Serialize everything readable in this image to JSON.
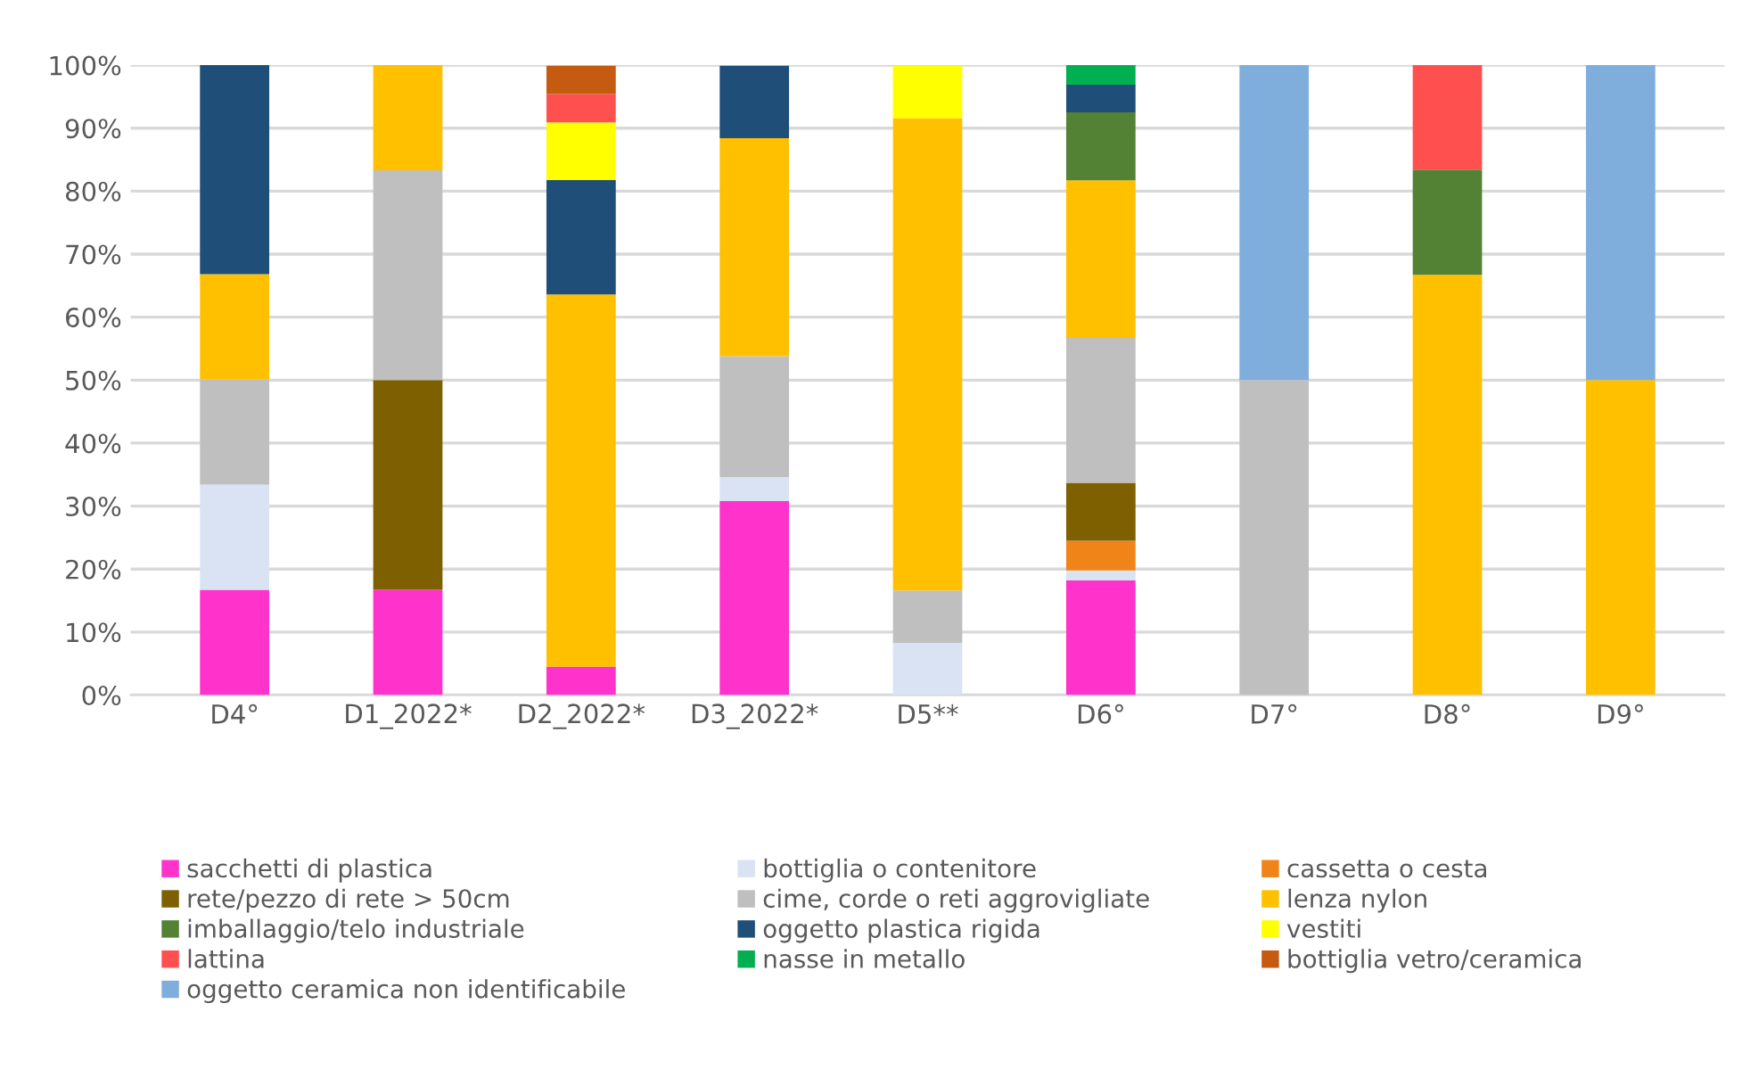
{
  "chart_data": {
    "type": "bar",
    "stacked": true,
    "categories": [
      "D4°",
      "D1_2022*",
      "D2_2022*",
      "D3_2022*",
      "D5**",
      "D6°",
      "D7°",
      "D8°",
      "D9°"
    ],
    "ylim": [
      0,
      100
    ],
    "yticks": [
      {
        "value": 0,
        "label": "0%"
      },
      {
        "value": 10,
        "label": "10%"
      },
      {
        "value": 20,
        "label": "20%"
      },
      {
        "value": 30,
        "label": "30%"
      },
      {
        "value": 40,
        "label": "40%"
      },
      {
        "value": 50,
        "label": "50%"
      },
      {
        "value": 60,
        "label": "60%"
      },
      {
        "value": 70,
        "label": "70%"
      },
      {
        "value": 80,
        "label": "80%"
      },
      {
        "value": 90,
        "label": "90%"
      },
      {
        "value": 100,
        "label": "100%"
      }
    ],
    "grid": "y",
    "legend": "bottom",
    "series": [
      {
        "name": "sacchetti di plastica",
        "color": "#ff33cc",
        "values": [
          16.7,
          16.7,
          4.5,
          30.8,
          0,
          18.2,
          0,
          0,
          0
        ]
      },
      {
        "name": "bottiglia o contenitore",
        "color": "#dae3f3",
        "values": [
          16.7,
          0,
          0,
          3.8,
          8.3,
          1.6,
          0,
          0,
          0
        ]
      },
      {
        "name": "cassetta o cesta",
        "color": "#f08419",
        "values": [
          0,
          0,
          0,
          0,
          0,
          4.7,
          0,
          0,
          0
        ]
      },
      {
        "name": "rete/pezzo di rete > 50cm",
        "color": "#7f6000",
        "values": [
          0,
          33.3,
          0,
          0,
          0,
          9.2,
          0,
          0,
          0
        ]
      },
      {
        "name": "cime, corde o reti aggrovigliate",
        "color": "#bfbfbf",
        "values": [
          16.7,
          33.3,
          0,
          19.2,
          8.3,
          23.0,
          50,
          0,
          0
        ]
      },
      {
        "name": "lenza nylon",
        "color": "#ffc000",
        "values": [
          16.7,
          16.7,
          59.1,
          34.6,
          75,
          25.0,
          0,
          66.7,
          50
        ]
      },
      {
        "name": "imballaggio/telo industriale",
        "color": "#548235",
        "values": [
          0,
          0,
          0,
          0,
          0,
          10.8,
          0,
          16.7,
          0
        ]
      },
      {
        "name": "oggetto plastica rigida",
        "color": "#1f4e79",
        "values": [
          33.3,
          0,
          18.2,
          11.5,
          0,
          4.4,
          0,
          0,
          0
        ]
      },
      {
        "name": "vestiti",
        "color": "#ffff00",
        "values": [
          0,
          0,
          9.1,
          0,
          8.3,
          0,
          0,
          0,
          0
        ]
      },
      {
        "name": "lattina",
        "color": "#ff5050",
        "values": [
          0,
          0,
          4.5,
          0,
          0,
          0,
          0,
          16.7,
          0
        ]
      },
      {
        "name": "nasse in metallo",
        "color": "#00b050",
        "values": [
          0,
          0,
          0,
          0,
          0,
          3.1,
          0,
          0,
          0
        ]
      },
      {
        "name": "bottiglia vetro/ceramica",
        "color": "#c55a11",
        "values": [
          0,
          0,
          4.5,
          0,
          0,
          0,
          0,
          0,
          0
        ]
      },
      {
        "name": "oggetto ceramica non identificabile",
        "color": "#7faedd",
        "values": [
          0,
          0,
          0,
          0,
          0,
          0,
          50,
          0,
          50
        ]
      }
    ]
  }
}
